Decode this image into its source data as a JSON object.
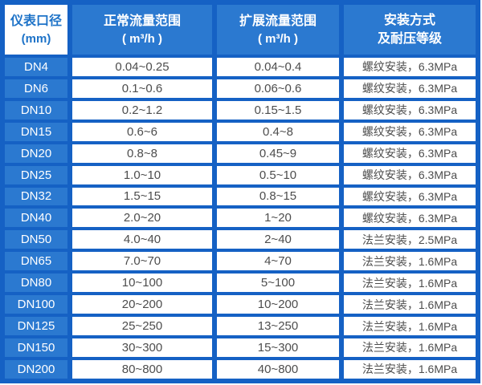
{
  "colors": {
    "border_blue": "#1561c4",
    "cell_blue": "#2b79d0",
    "header_text_blue": "#1e73c8",
    "data_text": "#4d4d4d"
  },
  "table": {
    "header": {
      "col1_line1": "仪表口径",
      "col1_line2": "(mm)",
      "col2_line1": "正常流量范围",
      "col2_line2": "( m³/h )",
      "col3_line1": "扩展流量范围",
      "col3_line2": "( m³/h )",
      "col4_line1": "安装方式",
      "col4_line2": "及耐压等级"
    },
    "rows": [
      {
        "dn": "DN4",
        "normal": "0.04~0.25",
        "extended": "0.04~0.4",
        "install": "螺纹安装，6.3MPa"
      },
      {
        "dn": "DN6",
        "normal": "0.1~0.6",
        "extended": "0.06~0.6",
        "install": "螺纹安装，6.3MPa"
      },
      {
        "dn": "DN10",
        "normal": "0.2~1.2",
        "extended": "0.15~1.5",
        "install": "螺纹安装，6.3MPa"
      },
      {
        "dn": "DN15",
        "normal": "0.6~6",
        "extended": "0.4~8",
        "install": "螺纹安装，6.3MPa"
      },
      {
        "dn": "DN20",
        "normal": "0.8~8",
        "extended": "0.45~9",
        "install": "螺纹安装，6.3MPa"
      },
      {
        "dn": "DN25",
        "normal": "1.0~10",
        "extended": "0.5~10",
        "install": "螺纹安装，6.3MPa"
      },
      {
        "dn": "DN32",
        "normal": "1.5~15",
        "extended": "0.8~15",
        "install": "螺纹安装，6.3MPa"
      },
      {
        "dn": "DN40",
        "normal": "2.0~20",
        "extended": "1~20",
        "install": "螺纹安装，6.3MPa"
      },
      {
        "dn": "DN50",
        "normal": "4.0~40",
        "extended": "2~40",
        "install": "法兰安装，2.5MPa"
      },
      {
        "dn": "DN65",
        "normal": "7.0~70",
        "extended": "4~70",
        "install": "法兰安装，1.6MPa"
      },
      {
        "dn": "DN80",
        "normal": "10~100",
        "extended": "5~100",
        "install": "法兰安装，1.6MPa"
      },
      {
        "dn": "DN100",
        "normal": "20~200",
        "extended": "10~200",
        "install": "法兰安装，1.6MPa"
      },
      {
        "dn": "DN125",
        "normal": "25~250",
        "extended": "13~250",
        "install": "法兰安装，1.6MPa"
      },
      {
        "dn": "DN150",
        "normal": "30~300",
        "extended": "15~300",
        "install": "法兰安装，1.6MPa"
      },
      {
        "dn": "DN200",
        "normal": "80~800",
        "extended": "40~800",
        "install": "法兰安装，1.6MPa"
      }
    ]
  },
  "chart_data": {
    "type": "table",
    "title": "",
    "columns": [
      "仪表口径 (mm)",
      "正常流量范围 ( m³/h )",
      "扩展流量范围 ( m³/h )",
      "安装方式 及耐压等级"
    ],
    "rows": [
      [
        "DN4",
        "0.04~0.25",
        "0.04~0.4",
        "螺纹安装，6.3MPa"
      ],
      [
        "DN6",
        "0.1~0.6",
        "0.06~0.6",
        "螺纹安装，6.3MPa"
      ],
      [
        "DN10",
        "0.2~1.2",
        "0.15~1.5",
        "螺纹安装，6.3MPa"
      ],
      [
        "DN15",
        "0.6~6",
        "0.4~8",
        "螺纹安装，6.3MPa"
      ],
      [
        "DN20",
        "0.8~8",
        "0.45~9",
        "螺纹安装，6.3MPa"
      ],
      [
        "DN25",
        "1.0~10",
        "0.5~10",
        "螺纹安装，6.3MPa"
      ],
      [
        "DN32",
        "1.5~15",
        "0.8~15",
        "螺纹安装，6.3MPa"
      ],
      [
        "DN40",
        "2.0~20",
        "1~20",
        "螺纹安装，6.3MPa"
      ],
      [
        "DN50",
        "4.0~40",
        "2~40",
        "法兰安装，2.5MPa"
      ],
      [
        "DN65",
        "7.0~70",
        "4~70",
        "法兰安装，1.6MPa"
      ],
      [
        "DN80",
        "10~100",
        "5~100",
        "法兰安装，1.6MPa"
      ],
      [
        "DN100",
        "20~200",
        "10~200",
        "法兰安装，1.6MPa"
      ],
      [
        "DN125",
        "25~250",
        "13~250",
        "法兰安装，1.6MPa"
      ],
      [
        "DN150",
        "30~300",
        "15~300",
        "法兰安装，1.6MPa"
      ],
      [
        "DN200",
        "80~800",
        "40~800",
        "法兰安装，1.6MPa"
      ]
    ]
  }
}
